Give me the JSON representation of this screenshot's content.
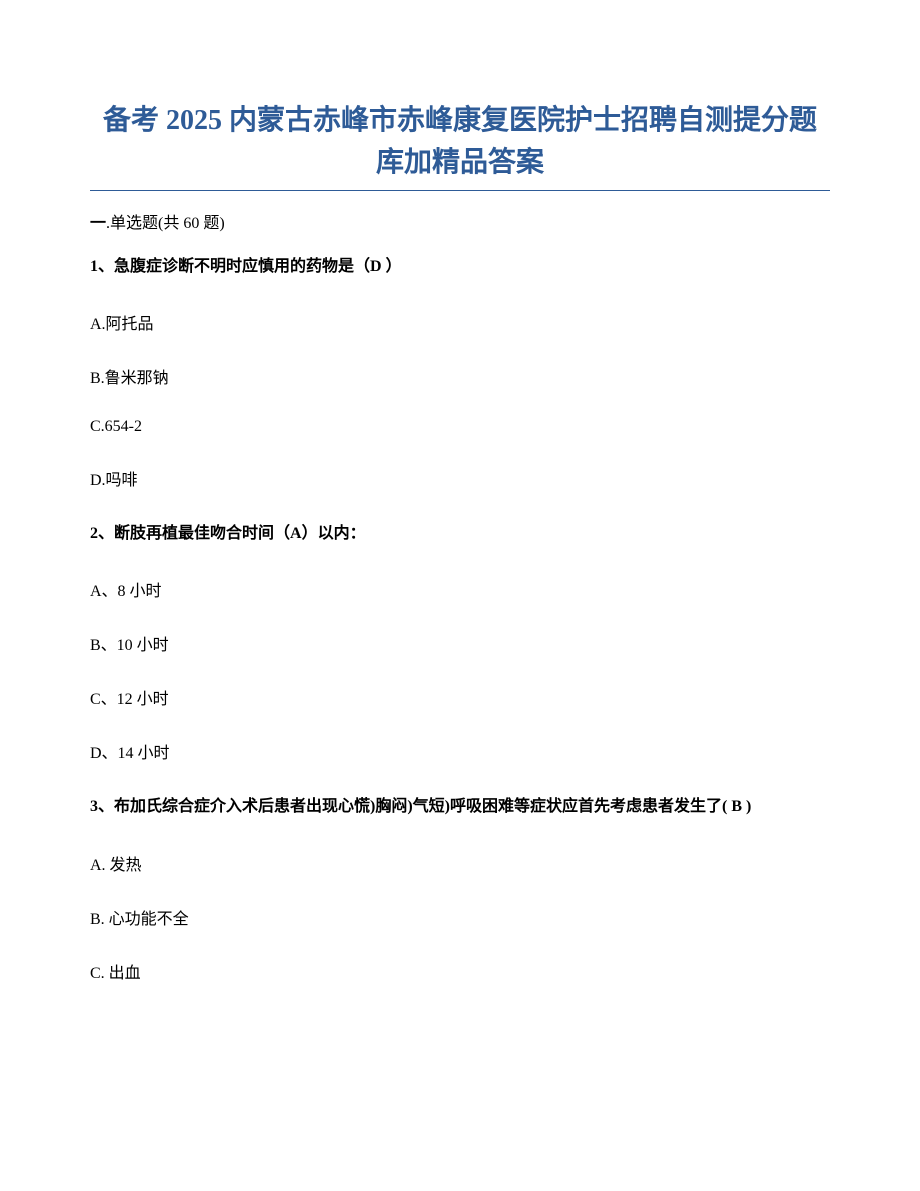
{
  "colors": {
    "title_color": "#2e5b97",
    "text_color": "#000000",
    "background": "#ffffff",
    "underline_color": "#2e5b97"
  },
  "typography": {
    "title_fontsize": 28,
    "body_fontsize": 16,
    "font_family": "SimSun"
  },
  "title_line1": "备考 2025 内蒙古赤峰市赤峰康复医院护士招聘自测提分题",
  "title_line2": "库加精品答案",
  "section": {
    "prefix": "一",
    "label": ".单选题(共 60 题)"
  },
  "questions": [
    {
      "number": "1、",
      "stem": "急腹症诊断不明时应慎用的药物是（D ）",
      "options": [
        {
          "label": "A.阿托品"
        },
        {
          "label": "B.鲁米那钠"
        },
        {
          "label": "C.654-2"
        },
        {
          "label": "D.吗啡"
        }
      ]
    },
    {
      "number": "2、",
      "stem": "断肢再植最佳吻合时间（A）以内：",
      "options": [
        {
          "label": "A、8 小时"
        },
        {
          "label": "B、10 小时"
        },
        {
          "label": "C、12 小时"
        },
        {
          "label": "D、14 小时"
        }
      ]
    },
    {
      "number": "3、",
      "stem": "布加氏综合症介入术后患者出现心慌)胸闷)气短)呼吸困难等症状应首先考虑患者发生了( B )",
      "options": [
        {
          "label": "A. 发热"
        },
        {
          "label": "B. 心功能不全"
        },
        {
          "label": "C. 出血"
        }
      ]
    }
  ]
}
